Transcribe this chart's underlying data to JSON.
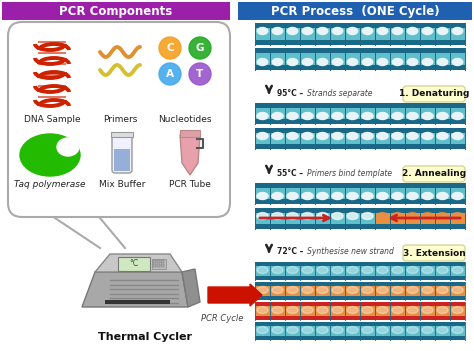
{
  "bg_color": "#ffffff",
  "left_header_color": "#9b1fa8",
  "right_header_color": "#2060b0",
  "left_header_text": "PCR Components",
  "right_header_text": "PCR Process  (ONE Cycle)",
  "header_text_color": "#ffffff",
  "step_labels": [
    "1. Denaturing",
    "2. Annealing",
    "3. Extension"
  ],
  "step_label_bg": "#ffffd0",
  "step_temp_texts": [
    "95°C – Strands separate",
    "55°C – Primers bind template",
    "72°C – Synthesise new strand"
  ],
  "step_temp_color": "#222222",
  "dna_color": "#cc2200",
  "taq_color": "#22bb00",
  "buffer_color": "#7799cc",
  "tube_color": "#e8a0aa",
  "component_labels": [
    "DNA Sample",
    "Primers",
    "Nucleotides",
    "Taq polymerase",
    "Mix Buffer",
    "PCR Tube"
  ],
  "label_color": "#222222",
  "arrow_color": "#cc1100",
  "pcr_cycle_label": "PCR Cycle",
  "thermal_label": "Thermal Cycler",
  "strand_teal": "#5fc0cc",
  "strand_dark": "#1a6888",
  "strand_orange": "#e89040",
  "strand_red": "#cc2222",
  "strand_white": "#e8f4f8",
  "figsize": [
    4.74,
    3.51
  ],
  "dpi": 100
}
